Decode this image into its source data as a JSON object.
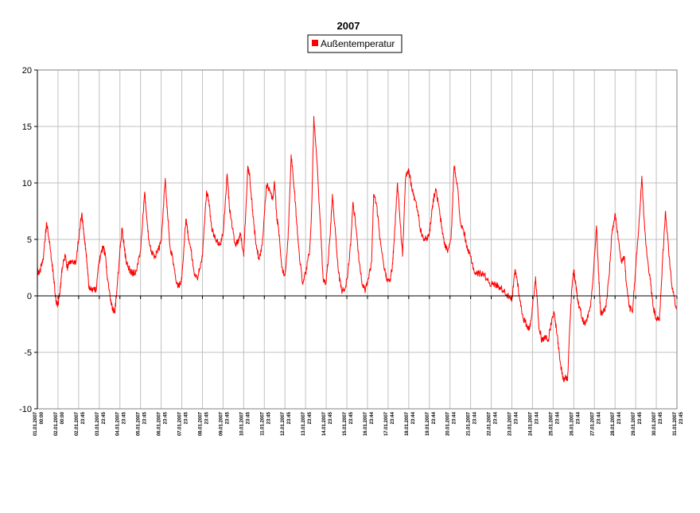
{
  "chart_data": {
    "type": "line",
    "title": "2007",
    "xlabel": "",
    "ylabel": "",
    "ylim": [
      -10,
      20
    ],
    "yticks": [
      20,
      15,
      10,
      5,
      0,
      -5,
      -10
    ],
    "grid": true,
    "legend_position": "top-center",
    "series": [
      {
        "name": "Außentemperatur",
        "color": "#ff0000",
        "time_unit": "day of January 2007 (1.0 = 01.01.2007 00:00)",
        "x": [
          1.0,
          1.1,
          1.2,
          1.3,
          1.45,
          1.55,
          1.7,
          1.8,
          1.9,
          2.0,
          2.1,
          2.2,
          2.35,
          2.45,
          2.55,
          2.7,
          2.85,
          3.0,
          3.15,
          3.25,
          3.3,
          3.4,
          3.5,
          3.6,
          3.75,
          3.85,
          3.95,
          4.1,
          4.2,
          4.3,
          4.4,
          4.55,
          4.65,
          4.75,
          4.85,
          5.0,
          5.1,
          5.2,
          5.3,
          5.5,
          5.65,
          5.8,
          6.0,
          6.2,
          6.3,
          6.4,
          6.55,
          6.7,
          6.85,
          7.0,
          7.2,
          7.3,
          7.45,
          7.55,
          7.7,
          7.85,
          8.0,
          8.2,
          8.3,
          8.45,
          8.6,
          8.75,
          8.85,
          9.0,
          9.2,
          9.3,
          9.45,
          9.55,
          9.7,
          9.85,
          10.0,
          10.2,
          10.3,
          10.45,
          10.6,
          10.75,
          10.85,
          11.0,
          11.2,
          11.3,
          11.45,
          11.6,
          11.75,
          11.9,
          12.1,
          12.25,
          12.4,
          12.5,
          12.6,
          12.7,
          12.85,
          13.0,
          13.15,
          13.3,
          13.45,
          13.55,
          13.7,
          13.85,
          14.0,
          14.2,
          14.3,
          14.4,
          14.55,
          14.75,
          14.85,
          15.0,
          15.2,
          15.3,
          15.45,
          15.6,
          15.75,
          15.9,
          16.05,
          16.2,
          16.3,
          16.45,
          16.6,
          16.75,
          16.9,
          17.05,
          17.2,
          17.3,
          17.45,
          17.6,
          17.8,
          17.95,
          18.1,
          18.2,
          18.3,
          18.45,
          18.55,
          18.7,
          18.85,
          19.0,
          19.15,
          19.3,
          19.45,
          19.55,
          19.7,
          19.85,
          20.0,
          20.15,
          20.3,
          20.45,
          20.6,
          20.75,
          20.9,
          21.05,
          21.2,
          21.35,
          21.5,
          21.7,
          21.85,
          22.0,
          22.2,
          22.4,
          22.6,
          22.8,
          23.0,
          23.2,
          23.4,
          23.6,
          23.8,
          24.0,
          24.15,
          24.25,
          24.4,
          24.55,
          24.7,
          24.85,
          25.0,
          25.15,
          25.3,
          25.45,
          25.6,
          25.75,
          25.9,
          26.05,
          26.2,
          26.35,
          26.5,
          26.6,
          26.7,
          26.8,
          26.9,
          27.0,
          27.1,
          27.2,
          27.35,
          27.5,
          27.65,
          27.8,
          27.95,
          28.1,
          28.2,
          28.3,
          28.4,
          28.55,
          28.7,
          28.85,
          29.0,
          29.15,
          29.3,
          29.45,
          29.55,
          29.7,
          29.85,
          30.0,
          30.15,
          30.3,
          30.4,
          30.55,
          30.7,
          30.85,
          31.0,
          31.15,
          31.3,
          31.45,
          31.6,
          31.75,
          31.95,
          32.0
        ],
        "y": [
          2.2,
          2.0,
          2.7,
          3.6,
          6.5,
          5.2,
          3.0,
          1.5,
          -0.5,
          -0.8,
          0.5,
          2.5,
          3.5,
          2.5,
          3.0,
          3.2,
          2.8,
          5.0,
          7.3,
          5.5,
          4.8,
          3.0,
          0.7,
          0.5,
          0.5,
          0.5,
          2.5,
          4.0,
          4.3,
          3.5,
          1.5,
          -0.5,
          -1.2,
          -1.5,
          0.5,
          4.0,
          6.0,
          4.5,
          3.0,
          2.2,
          2.0,
          2.2,
          4.0,
          9.2,
          7.0,
          5.0,
          3.8,
          3.5,
          4.0,
          4.8,
          10.4,
          7.5,
          4.0,
          3.5,
          1.5,
          0.8,
          1.5,
          6.8,
          5.5,
          4.0,
          2.0,
          1.5,
          2.3,
          3.5,
          9.3,
          8.5,
          6.0,
          5.5,
          4.8,
          4.5,
          5.5,
          10.8,
          8.0,
          6.0,
          4.5,
          5.0,
          5.5,
          3.5,
          11.5,
          10.5,
          7.0,
          4.5,
          3.2,
          4.5,
          9.8,
          9.5,
          8.5,
          10.0,
          7.0,
          5.8,
          2.5,
          1.8,
          5.0,
          12.5,
          9.5,
          7.0,
          3.5,
          1.2,
          2.0,
          4.0,
          8.0,
          15.9,
          12.0,
          5.0,
          1.5,
          1.2,
          5.5,
          9.0,
          5.5,
          2.0,
          0.5,
          0.5,
          2.0,
          5.0,
          8.3,
          6.0,
          3.0,
          1.0,
          0.5,
          1.5,
          3.0,
          9.0,
          8.0,
          5.0,
          2.5,
          1.5,
          1.5,
          2.5,
          5.0,
          10.0,
          7.5,
          3.5,
          10.5,
          11.2,
          9.5,
          8.5,
          7.5,
          6.0,
          5.2,
          5.0,
          5.5,
          8.0,
          9.5,
          8.0,
          6.0,
          4.5,
          4.0,
          5.0,
          11.5,
          10.0,
          6.5,
          5.5,
          4.0,
          3.5,
          2.0,
          2.0,
          2.0,
          1.5,
          1.0,
          1.0,
          0.8,
          0.5,
          0.0,
          -0.5,
          2.3,
          1.5,
          -0.5,
          -2.0,
          -2.5,
          -3.0,
          -1.0,
          1.7,
          -2.5,
          -4.0,
          -3.5,
          -4.0,
          -2.5,
          -1.5,
          -3.5,
          -6.0,
          -7.5,
          -7.0,
          -7.5,
          -3.0,
          0.5,
          2.3,
          1.0,
          -0.5,
          -1.5,
          -2.5,
          -2.0,
          -1.0,
          2.0,
          6.2,
          2.0,
          -1.5,
          -1.5,
          -1.0,
          1.5,
          5.5,
          7.3,
          5.0,
          3.0,
          3.5,
          1.0,
          -1.0,
          -1.5,
          2.5,
          6.0,
          10.6,
          7.0,
          3.5,
          1.5,
          -1.0,
          -2.0,
          -2.2,
          3.0,
          7.5,
          4.0,
          1.0,
          -1.0,
          -1.2
        ]
      }
    ],
    "x_tick_labels": [
      {
        "date": "01.01.2007",
        "time": "00:00"
      },
      {
        "date": "02.01.2007",
        "time": "00:00"
      },
      {
        "date": "02.01.2007",
        "time": "23:45"
      },
      {
        "date": "03.01.2007",
        "time": "23:45"
      },
      {
        "date": "04.01.2007",
        "time": "23:45"
      },
      {
        "date": "05.01.2007",
        "time": "23:45"
      },
      {
        "date": "06.01.2007",
        "time": "23:45"
      },
      {
        "date": "07.01.2007",
        "time": "23:45"
      },
      {
        "date": "08.01.2007",
        "time": "23:45"
      },
      {
        "date": "09.01.2007",
        "time": "23:45"
      },
      {
        "date": "10.01.2007",
        "time": "23:45"
      },
      {
        "date": "11.01.2007",
        "time": "23:45"
      },
      {
        "date": "12.01.2007",
        "time": "23:45"
      },
      {
        "date": "13.01.2007",
        "time": "23:45"
      },
      {
        "date": "14.01.2007",
        "time": "23:45"
      },
      {
        "date": "15.01.2007",
        "time": "23:45"
      },
      {
        "date": "16.01.2007",
        "time": "23:44"
      },
      {
        "date": "17.01.2007",
        "time": "23:44"
      },
      {
        "date": "18.01.2007",
        "time": "23:44"
      },
      {
        "date": "19.01.2007",
        "time": "23:44"
      },
      {
        "date": "20.01.2007",
        "time": "23:44"
      },
      {
        "date": "21.01.2007",
        "time": "23:44"
      },
      {
        "date": "22.01.2007",
        "time": "23:44"
      },
      {
        "date": "23.01.2007",
        "time": "23:44"
      },
      {
        "date": "24.01.2007",
        "time": "23:44"
      },
      {
        "date": "25.01.2007",
        "time": "23:44"
      },
      {
        "date": "26.01.2007",
        "time": "23:44"
      },
      {
        "date": "27.01.2007",
        "time": "23:44"
      },
      {
        "date": "28.01.2007",
        "time": "23:44"
      },
      {
        "date": "29.01.2007",
        "time": "23:45"
      },
      {
        "date": "30.01.2007",
        "time": "23:45"
      },
      {
        "date": "31.01.2007",
        "time": "23:45"
      }
    ]
  }
}
